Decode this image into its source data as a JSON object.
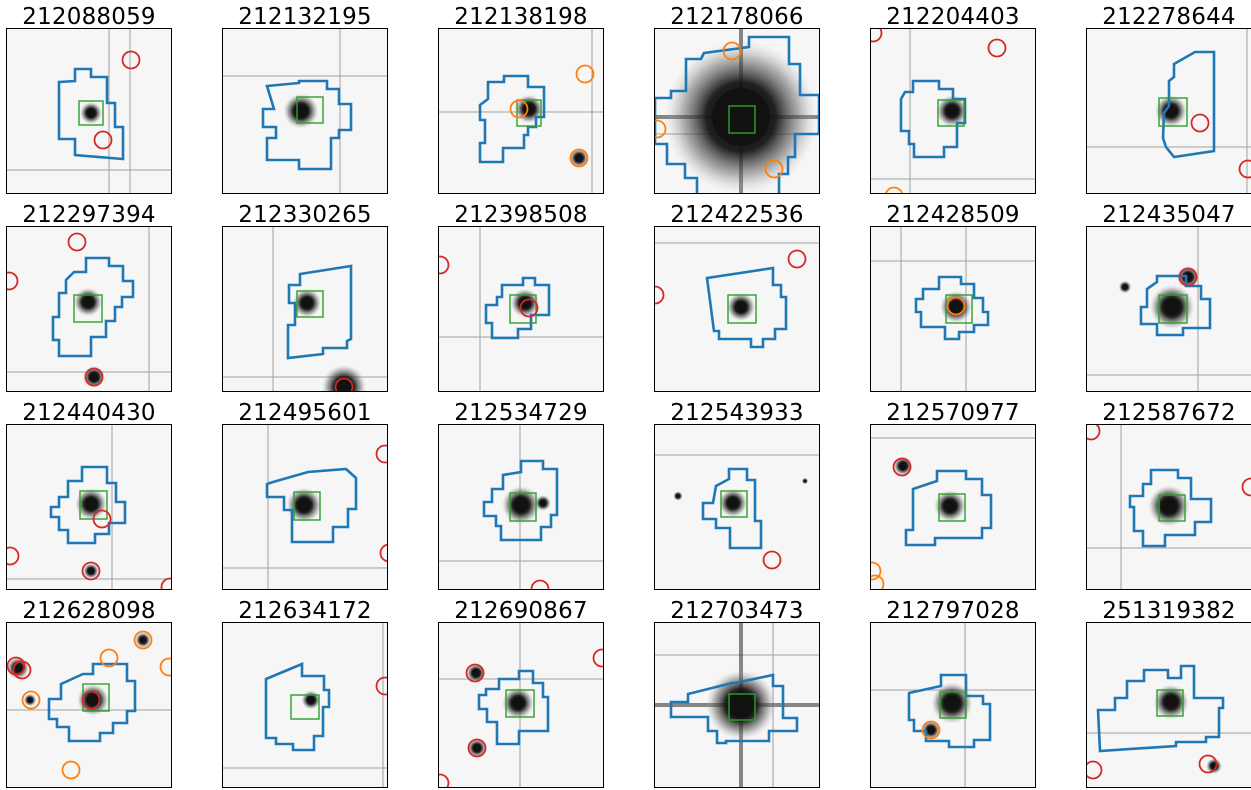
{
  "figure": {
    "panels": [
      {
        "id": "212088059"
      },
      {
        "id": "212132195"
      },
      {
        "id": "212138198"
      },
      {
        "id": "212178066"
      },
      {
        "id": "212204403"
      },
      {
        "id": "212278644"
      },
      {
        "id": "212297394"
      },
      {
        "id": "212330265"
      },
      {
        "id": "212398508"
      },
      {
        "id": "212422536"
      },
      {
        "id": "212428509"
      },
      {
        "id": "212435047"
      },
      {
        "id": "212440430"
      },
      {
        "id": "212495601"
      },
      {
        "id": "212534729"
      },
      {
        "id": "212543933"
      },
      {
        "id": "212570977"
      },
      {
        "id": "212587672"
      },
      {
        "id": "212628098"
      },
      {
        "id": "212634172"
      },
      {
        "id": "212690867"
      },
      {
        "id": "212703473"
      },
      {
        "id": "212797028"
      },
      {
        "id": "251319382"
      }
    ],
    "colors": {
      "aperture": "#1f77b4",
      "target_box": "#2ca02c",
      "bright_neighbor": "#d62728",
      "faint_neighbor": "#ff7f0e",
      "grid_line": "#a0a0a0",
      "background": "#f6f6f6",
      "source": "#111111"
    }
  }
}
